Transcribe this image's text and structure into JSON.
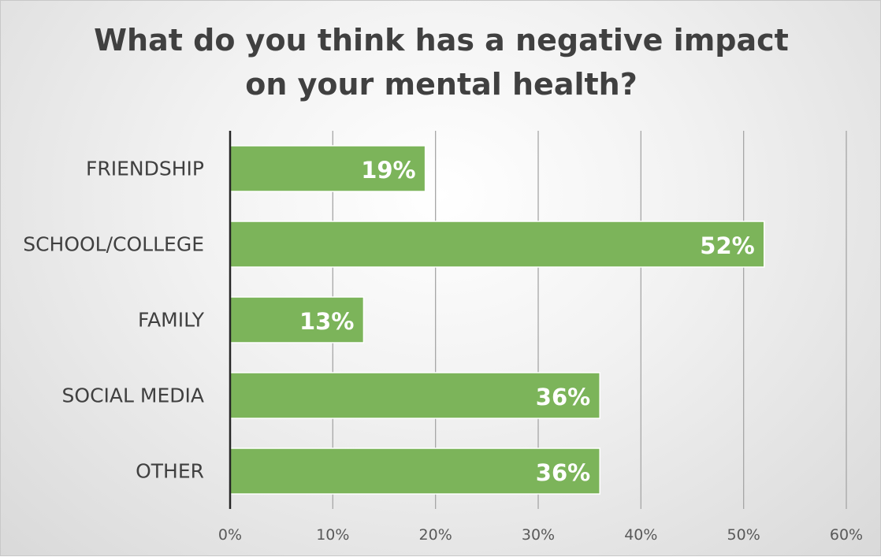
{
  "chart_data": {
    "type": "bar",
    "orientation": "horizontal",
    "title": "What do you think has a negative impact on your mental health?",
    "title_lines": [
      "What do you think has a negative impact",
      "on your mental health?"
    ],
    "categories": [
      "FRIENDSHIP",
      "SCHOOL/COLLEGE",
      "FAMILY",
      "SOCIAL MEDIA",
      "OTHER"
    ],
    "values": [
      19,
      52,
      13,
      36,
      36
    ],
    "data_labels": [
      "19%",
      "52%",
      "13%",
      "36%",
      "36%"
    ],
    "xlim": [
      0,
      60
    ],
    "x_ticks": [
      0,
      10,
      20,
      30,
      40,
      50,
      60
    ],
    "x_tick_labels": [
      "0%",
      "10%",
      "20%",
      "30%",
      "40%",
      "50%",
      "60%"
    ],
    "xlabel": "",
    "ylabel": "",
    "grid": true,
    "legend": "none",
    "bar_color": "#7cb45a"
  }
}
